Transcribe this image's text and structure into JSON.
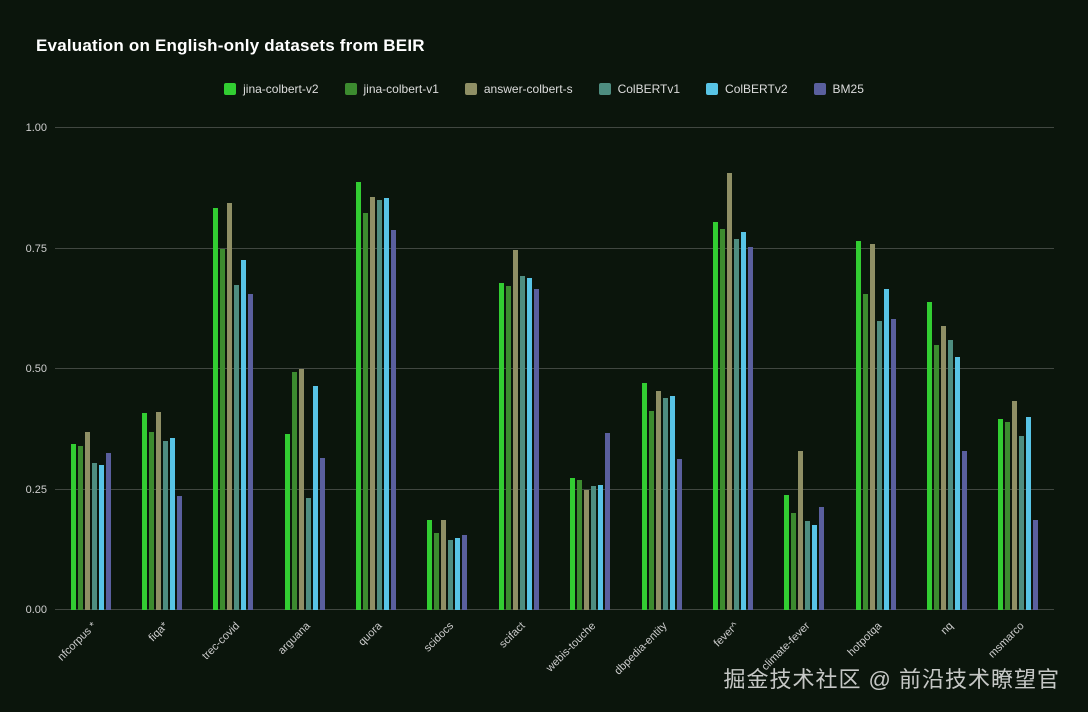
{
  "title": "Evaluation on English-only datasets from BEIR",
  "watermark": "掘金技术社区 @ 前沿技术瞭望官",
  "colors": {
    "background": "#0b150c",
    "gridline": "#414741",
    "axis_text": "#cfcfcf",
    "title_text": "#ffffff"
  },
  "chart_data": {
    "type": "bar",
    "title": "Evaluation on English-only datasets from BEIR",
    "xlabel": "",
    "ylabel": "",
    "ylim": [
      0,
      1
    ],
    "yticks": [
      0.0,
      0.25,
      0.5,
      0.75,
      1.0
    ],
    "ytick_labels": [
      "0.00",
      "0.25",
      "0.50",
      "0.75",
      "1.00"
    ],
    "grid": true,
    "legend_position": "top-center",
    "categories": [
      "nfcorpus *",
      "fiqa*",
      "trec-covid",
      "arguana",
      "quora",
      "scidocs",
      "scifact",
      "webis-touche",
      "dbpedia-entity",
      "fever^",
      "climate-fever",
      "hotpotqa",
      "nq",
      "msmarco"
    ],
    "series": [
      {
        "name": "jina-colbert-v2",
        "color": "#32cd32",
        "values": [
          0.345,
          0.408,
          0.834,
          0.366,
          0.887,
          0.186,
          0.678,
          0.274,
          0.471,
          0.805,
          0.239,
          0.766,
          0.64,
          0.396
        ]
      },
      {
        "name": "jina-colbert-v1",
        "color": "#3c8b2f",
        "values": [
          0.34,
          0.37,
          0.75,
          0.494,
          0.823,
          0.16,
          0.672,
          0.27,
          0.413,
          0.79,
          0.201,
          0.656,
          0.549,
          0.39
        ]
      },
      {
        "name": "answer-colbert-s",
        "color": "#8f8f65",
        "values": [
          0.37,
          0.41,
          0.845,
          0.5,
          0.856,
          0.186,
          0.747,
          0.25,
          0.455,
          0.906,
          0.33,
          0.76,
          0.59,
          0.434
        ]
      },
      {
        "name": "ColBERTv1",
        "color": "#4e8d80",
        "values": [
          0.305,
          0.35,
          0.675,
          0.233,
          0.85,
          0.145,
          0.693,
          0.258,
          0.44,
          0.77,
          0.184,
          0.6,
          0.56,
          0.36
        ]
      },
      {
        "name": "ColBERTv2",
        "color": "#58c4e6",
        "values": [
          0.3,
          0.356,
          0.726,
          0.464,
          0.855,
          0.15,
          0.689,
          0.26,
          0.443,
          0.785,
          0.176,
          0.667,
          0.524,
          0.401
        ]
      },
      {
        "name": "BM25",
        "color": "#5a5f9e",
        "values": [
          0.325,
          0.236,
          0.656,
          0.315,
          0.789,
          0.155,
          0.665,
          0.367,
          0.313,
          0.753,
          0.213,
          0.603,
          0.329,
          0.187
        ]
      }
    ]
  }
}
